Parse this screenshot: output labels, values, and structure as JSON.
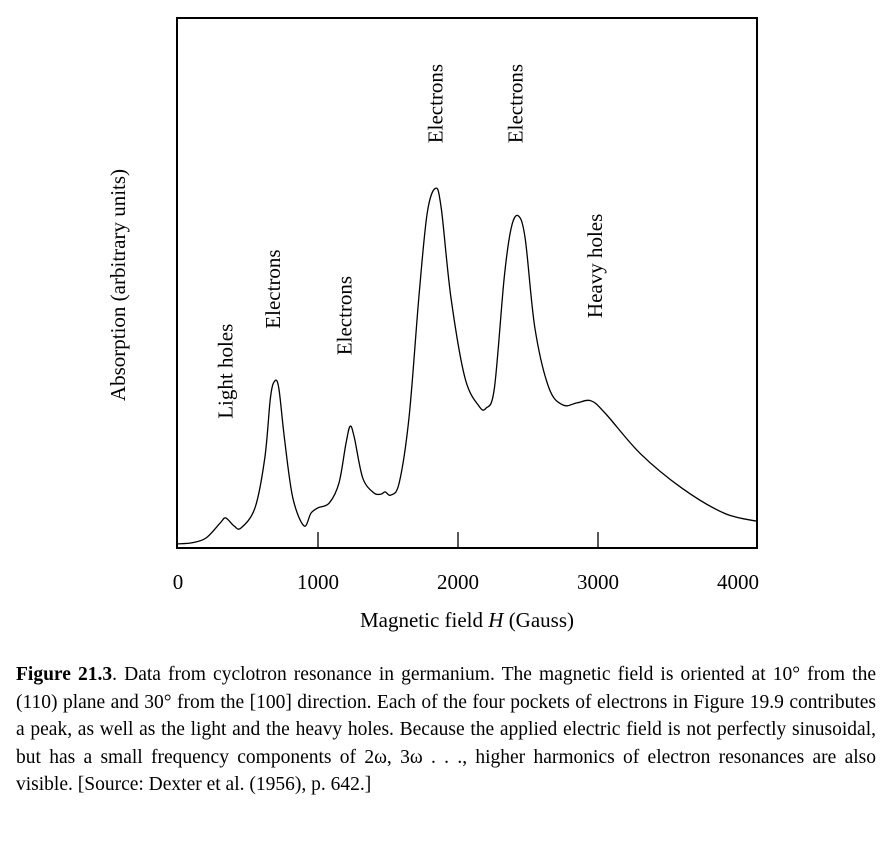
{
  "chart_data": {
    "type": "line",
    "title": "",
    "xlabel_prefix": "Magnetic field ",
    "xlabel_var": "H",
    "xlabel_suffix": " (Gauss)",
    "ylabel": "Absorption (arbitrary units)",
    "xlim": [
      0,
      4130
    ],
    "ylim": [
      0,
      100
    ],
    "xticks": [
      0,
      1000,
      2000,
      3000,
      4000
    ],
    "xtick_labels": [
      "0",
      "1000",
      "2000",
      "3000",
      "4000"
    ],
    "yticks": [],
    "grid": false,
    "series": [
      {
        "name": "Absorption",
        "x": [
          0,
          100,
          200,
          300,
          340,
          400,
          450,
          550,
          620,
          660,
          690,
          720,
          760,
          820,
          900,
          950,
          1000,
          1080,
          1150,
          1200,
          1230,
          1260,
          1320,
          1400,
          1450,
          1480,
          1520,
          1580,
          1650,
          1720,
          1780,
          1840,
          1880,
          1950,
          2050,
          2150,
          2200,
          2260,
          2330,
          2380,
          2430,
          2480,
          2550,
          2650,
          2750,
          2850,
          2950,
          3050,
          3300,
          3600,
          3900,
          4130
        ],
        "y": [
          0.4,
          0.6,
          1.5,
          4.3,
          5.3,
          3.8,
          3.4,
          7.2,
          16.6,
          27.9,
          31.1,
          29.8,
          20.4,
          9.1,
          3.8,
          6.2,
          7.2,
          8.1,
          11.9,
          19.4,
          22.6,
          20.4,
          12.8,
          10.0,
          9.8,
          10.2,
          9.6,
          11.9,
          24.2,
          46.8,
          62.8,
          67.5,
          63.8,
          46.8,
          31.7,
          26.4,
          26.0,
          29.8,
          50.6,
          60.0,
          62.3,
          58.0,
          41.0,
          29.8,
          26.6,
          27.0,
          27.4,
          25.1,
          17.5,
          10.9,
          6.2,
          4.7
        ]
      }
    ],
    "annotations": [
      {
        "text": "Light holes",
        "x": 340,
        "y": 24
      },
      {
        "text": "Electrons",
        "x": 680,
        "y": 41
      },
      {
        "text": "Electrons",
        "x": 1190,
        "y": 36
      },
      {
        "text": "Electrons",
        "x": 1840,
        "y": 76
      },
      {
        "text": "Electrons",
        "x": 2410,
        "y": 76
      },
      {
        "text": "Heavy holes",
        "x": 2980,
        "y": 43
      }
    ]
  },
  "caption": {
    "label": "Figure 21.3",
    "text": ". Data from cyclotron resonance in germanium. The magnetic field is oriented at 10° from the (110) plane and 30° from the [100] direction. Each of the four pockets of electrons in Figure 19.9 contributes a peak, as well as the light and the heavy holes. Because the applied electric field is not perfectly sinusoidal, but has a small frequency components of 2ω, 3ω . . ., higher harmonics of electron resonances are also visible. [Source: Dexter et al. (1956), p. 642.]"
  }
}
